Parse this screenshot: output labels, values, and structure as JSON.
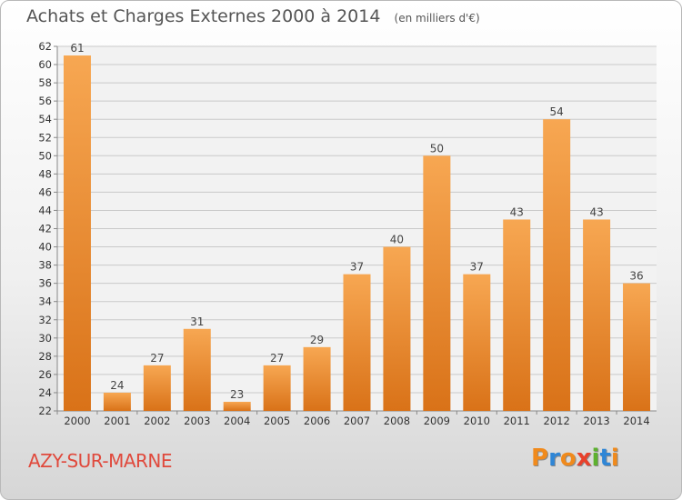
{
  "title": "Achats et Charges Externes 2000 à 2014",
  "unit": "(en milliers d'€)",
  "place": "AZY-SUR-MARNE",
  "brand": {
    "text": "Proxiti",
    "letter_colors": [
      "#f08a1c",
      "#2f86d6",
      "#f08a1c",
      "#e8412c",
      "#5db12f",
      "#2f86d6",
      "#f08a1c"
    ]
  },
  "colors": {
    "bar_light": "#f7a752",
    "bar_dark": "#d97218",
    "grid": "#c9c9c9",
    "axis": "#888888"
  },
  "chart_data": {
    "type": "bar",
    "categories": [
      "2000",
      "2001",
      "2002",
      "2003",
      "2004",
      "2005",
      "2006",
      "2007",
      "2008",
      "2009",
      "2010",
      "2011",
      "2012",
      "2013",
      "2014"
    ],
    "values": [
      61,
      24,
      27,
      31,
      23,
      27,
      29,
      37,
      40,
      50,
      37,
      43,
      54,
      43,
      36
    ],
    "ylim": [
      22,
      62
    ],
    "yticks": [
      22,
      24,
      26,
      28,
      30,
      32,
      34,
      36,
      38,
      40,
      42,
      44,
      46,
      48,
      50,
      52,
      54,
      56,
      58,
      60,
      62
    ],
    "grid": true,
    "data_labels": true
  }
}
